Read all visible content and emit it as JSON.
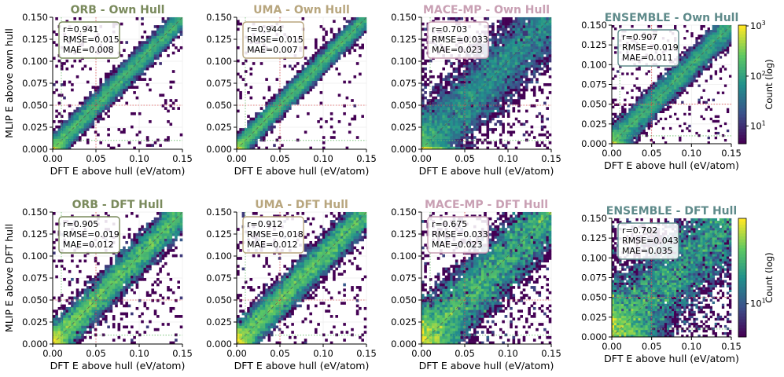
{
  "figure": {
    "shared_xlabel": "DFT E above hull (eV/atom)",
    "row_ylabels": [
      "MLIP E above own hull",
      "MLIP E above DFT hull"
    ],
    "colorbar_label": "Count (log)",
    "colormap": [
      "#440154",
      "#3b528b",
      "#21918c",
      "#5ec962",
      "#fde725"
    ]
  },
  "chart_data": [
    {
      "type": "heatmap",
      "title": "ORB - Own Hull",
      "title_color": "#7a8a5c",
      "stats": {
        "r": "r=0.941",
        "rmse": "RMSE=0.015",
        "mae": "MAE=0.008"
      },
      "xlabel": "DFT E above hull (eV/atom)",
      "ylabel": "MLIP E above own hull",
      "xlim": [
        0,
        0.15
      ],
      "ylim": [
        0,
        0.15
      ],
      "xticks": [
        "0.00",
        "0.05",
        "0.10",
        "0.15"
      ],
      "yticks": [
        "0.000",
        "0.025",
        "0.050",
        "0.075",
        "0.100",
        "0.125",
        "0.150"
      ],
      "spread": 0.008,
      "colorbar": false
    },
    {
      "type": "heatmap",
      "title": "UMA - Own Hull",
      "title_color": "#b8a67e",
      "stats": {
        "r": "r=0.944",
        "rmse": "RMSE=0.015",
        "mae": "MAE=0.007"
      },
      "xlabel": "DFT E above hull (eV/atom)",
      "ylabel": "",
      "xlim": [
        0,
        0.15
      ],
      "ylim": [
        0,
        0.15
      ],
      "xticks": [
        "0.00",
        "0.05",
        "0.10",
        "0.15"
      ],
      "yticks": [
        "0.000",
        "0.025",
        "0.050",
        "0.075",
        "0.100",
        "0.125",
        "0.150"
      ],
      "spread": 0.007,
      "colorbar": false
    },
    {
      "type": "heatmap",
      "title": "MACE-MP - Own Hull",
      "title_color": "#c9a0b4",
      "stats": {
        "r": "r=0.703",
        "rmse": "RMSE=0.033",
        "mae": "MAE=0.023"
      },
      "xlabel": "DFT E above hull (eV/atom)",
      "ylabel": "",
      "xlim": [
        0,
        0.15
      ],
      "ylim": [
        0,
        0.15
      ],
      "xticks": [
        "0.00",
        "0.05",
        "0.10",
        "0.15"
      ],
      "yticks": [
        "0.000",
        "0.025",
        "0.050",
        "0.075",
        "0.100",
        "0.125",
        "0.150"
      ],
      "spread": 0.024,
      "colorbar": false
    },
    {
      "type": "heatmap",
      "title": "ENSEMBLE - Own Hull",
      "title_color": "#5e8a8a",
      "stats": {
        "r": "r=0.907",
        "rmse": "RMSE=0.019",
        "mae": "MAE=0.011"
      },
      "xlabel": "DFT E above hull (eV/atom)",
      "ylabel": "",
      "xlim": [
        0,
        0.15
      ],
      "ylim": [
        0,
        0.15
      ],
      "xticks": [
        "0.00",
        "0.05",
        "0.10",
        "0.15"
      ],
      "yticks": [
        "0.000",
        "0.025",
        "0.050",
        "0.075",
        "0.100",
        "0.125",
        "0.150"
      ],
      "spread": 0.011,
      "colorbar": true,
      "cbar_ticks": [
        "10^1",
        "10^2",
        "10^3"
      ]
    },
    {
      "type": "heatmap",
      "title": "ORB - DFT Hull",
      "title_color": "#7a8a5c",
      "stats": {
        "r": "r=0.905",
        "rmse": "RMSE=0.019",
        "mae": "MAE=0.012"
      },
      "xlabel": "DFT E above hull (eV/atom)",
      "ylabel": "MLIP E above DFT hull",
      "xlim": [
        0,
        0.15
      ],
      "ylim": [
        0,
        0.15
      ],
      "xticks": [
        "0.00",
        "0.05",
        "0.10",
        "0.15"
      ],
      "yticks": [
        "0.000",
        "0.025",
        "0.050",
        "0.075",
        "0.100",
        "0.125",
        "0.150"
      ],
      "spread": 0.012,
      "colorbar": false
    },
    {
      "type": "heatmap",
      "title": "UMA - DFT Hull",
      "title_color": "#b8a67e",
      "stats": {
        "r": "r=0.912",
        "rmse": "RMSE=0.018",
        "mae": "MAE=0.012"
      },
      "xlabel": "DFT E above hull (eV/atom)",
      "ylabel": "",
      "xlim": [
        0,
        0.15
      ],
      "ylim": [
        0,
        0.15
      ],
      "xticks": [
        "0.00",
        "0.05",
        "0.10",
        "0.15"
      ],
      "yticks": [
        "0.000",
        "0.025",
        "0.050",
        "0.075",
        "0.100",
        "0.125",
        "0.150"
      ],
      "spread": 0.012,
      "colorbar": false
    },
    {
      "type": "heatmap",
      "title": "MACE-MP - DFT Hull",
      "title_color": "#c9a0b4",
      "stats": {
        "r": "r=0.675",
        "rmse": "RMSE=0.033",
        "mae": "MAE=0.023"
      },
      "xlabel": "DFT E above hull (eV/atom)",
      "ylabel": "",
      "xlim": [
        0,
        0.15
      ],
      "ylim": [
        0,
        0.15
      ],
      "xticks": [
        "0.00",
        "0.05",
        "0.10",
        "0.15"
      ],
      "yticks": [
        "0.000",
        "0.025",
        "0.050",
        "0.075",
        "0.100",
        "0.125",
        "0.150"
      ],
      "spread": 0.024,
      "colorbar": false
    },
    {
      "type": "heatmap",
      "title": "ENSEMBLE - DFT Hull",
      "title_color": "#5e8a8a",
      "stats": {
        "r": "r=0.702",
        "rmse": "RMSE=0.043",
        "mae": "MAE=0.035"
      },
      "xlabel": "DFT E above hull (eV/atom)",
      "ylabel": "",
      "xlim": [
        0,
        0.15
      ],
      "ylim": [
        0,
        0.15
      ],
      "xticks": [
        "0.00",
        "0.05",
        "0.10",
        "0.15"
      ],
      "yticks": [
        "0.000",
        "0.025",
        "0.050",
        "0.075",
        "0.100",
        "0.125",
        "0.150"
      ],
      "spread": 0.035,
      "colorbar": true,
      "cbar_ticks": [
        "10^1"
      ]
    }
  ]
}
